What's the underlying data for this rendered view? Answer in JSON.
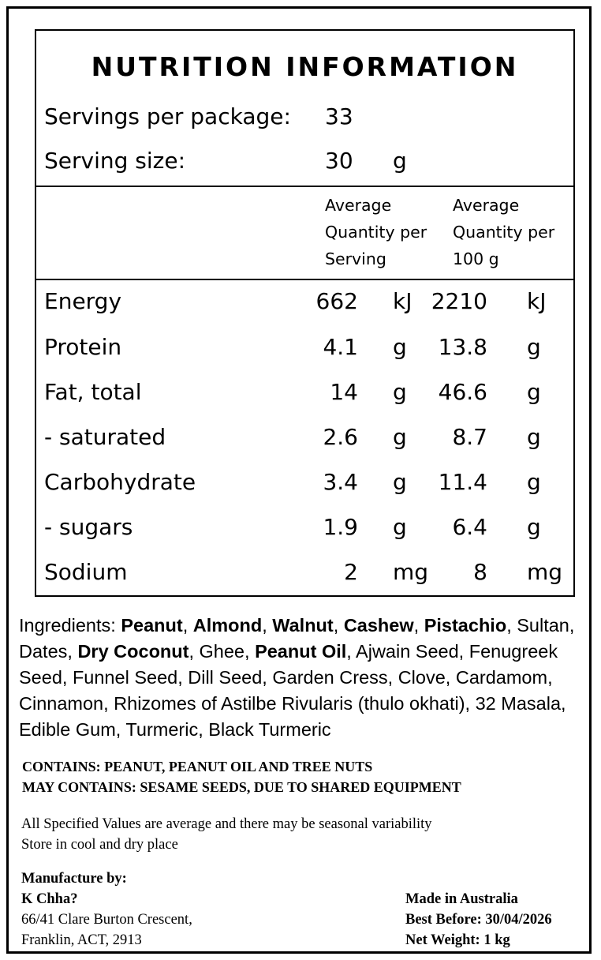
{
  "nutrition": {
    "title": "NUTRITION INFORMATION",
    "servings_label": "Servings per package:",
    "servings_value": "33",
    "size_label": "Serving size:",
    "size_value": "30",
    "size_unit": "g",
    "col1_head": [
      "Average",
      "Quantity per",
      "Serving"
    ],
    "col2_head": [
      "Average",
      "Quantity per",
      "100 g"
    ],
    "rows": [
      {
        "name": "Energy",
        "v1": "662",
        "u1": "kJ",
        "v2": "2210",
        "u2": "kJ"
      },
      {
        "name": "Protein",
        "v1": "4.1",
        "u1": "g",
        "v2": "13.8",
        "u2": "g"
      },
      {
        "name": "Fat, total",
        "v1": "14",
        "u1": "g",
        "v2": "46.6",
        "u2": "g"
      },
      {
        "name": "- saturated",
        "v1": "2.6",
        "u1": "g",
        "v2": "8.7",
        "u2": "g"
      },
      {
        "name": "Carbohydrate",
        "v1": "3.4",
        "u1": "g",
        "v2": "11.4",
        "u2": "g"
      },
      {
        "name": "- sugars",
        "v1": "1.9",
        "u1": "g",
        "v2": "6.4",
        "u2": "g"
      },
      {
        "name": "Sodium",
        "v1": "2",
        "u1": "mg",
        "v2": "8",
        "u2": "mg"
      }
    ]
  },
  "ingredients": {
    "label": "Ingredients: ",
    "items": [
      {
        "text": "Peanut",
        "bold": true
      },
      {
        "text": ", ",
        "bold": false
      },
      {
        "text": "Almond",
        "bold": true
      },
      {
        "text": ", ",
        "bold": false
      },
      {
        "text": "Walnut",
        "bold": true
      },
      {
        "text": ", ",
        "bold": false
      },
      {
        "text": "Cashew",
        "bold": true
      },
      {
        "text": ", ",
        "bold": false
      },
      {
        "text": "Pistachio",
        "bold": true
      },
      {
        "text": ", Sultan, Dates, ",
        "bold": false
      },
      {
        "text": "Dry Coconut",
        "bold": true
      },
      {
        "text": ", Ghee, ",
        "bold": false
      },
      {
        "text": "Peanut Oil",
        "bold": true
      },
      {
        "text": ", Ajwain Seed, Fenugreek Seed, Funnel Seed, Dill Seed, Garden Cress, Clove, Cardamom, Cinnamon, Rhizomes of Astilbe Rivularis (thulo okhati), 32 Masala, Edible Gum, Turmeric, Black Turmeric",
        "bold": false
      }
    ]
  },
  "contains": {
    "line1": "CONTAINS: PEANUT, PEANUT OIL AND TREE NUTS",
    "line2": "MAY CONTAINS: SESAME SEEDS, DUE TO SHARED EQUIPMENT"
  },
  "notes": {
    "line1": "All Specified Values are average and there may be seasonal variability",
    "line2": "Store in cool and dry place"
  },
  "manufacturer": {
    "heading": "Manufacture by:",
    "name": "K Chha?",
    "address1": "66/41 Clare Burton Crescent,",
    "address2": "Franklin, ACT, 2913"
  },
  "product_info": {
    "origin": "Made in Australia",
    "best_before": "Best Before: 30/04/2026",
    "net_weight": "Net Weight: 1 kg"
  }
}
